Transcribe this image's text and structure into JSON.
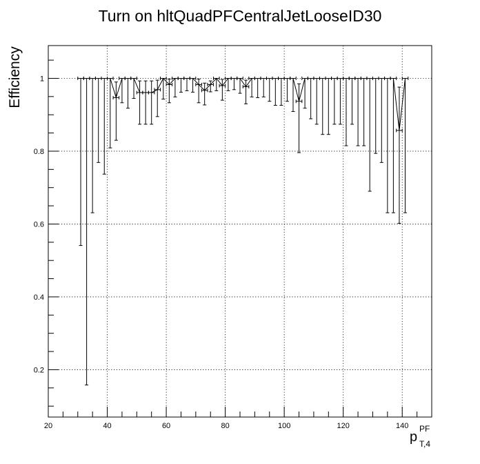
{
  "chart_data": {
    "type": "scatter",
    "title": "Turn on hltQuadPFCentralJetLooseID30",
    "ylabel": "Efficiency",
    "xlabel": {
      "base": "p",
      "superscript": "PF",
      "subscript": "T,4"
    },
    "xlim": [
      20,
      150
    ],
    "ylim": [
      0.07,
      1.09
    ],
    "xticks": [
      20,
      40,
      60,
      80,
      100,
      120,
      140
    ],
    "yticks": [
      0.2,
      0.4,
      0.6,
      0.8,
      1
    ],
    "grid": true,
    "bin_half_width": 1,
    "points": [
      {
        "x": 31,
        "y": 1,
        "lo": 0.541
      },
      {
        "x": 33,
        "y": 1,
        "lo": 0.158
      },
      {
        "x": 35,
        "y": 1,
        "lo": 0.631
      },
      {
        "x": 37,
        "y": 1,
        "lo": 0.769
      },
      {
        "x": 39,
        "y": 1,
        "lo": 0.737
      },
      {
        "x": 41,
        "y": 1,
        "lo": 0.809
      },
      {
        "x": 43,
        "y": 0.947,
        "lo": 0.83,
        "hi": 0.99
      },
      {
        "x": 45,
        "y": 1,
        "lo": 0.933
      },
      {
        "x": 47,
        "y": 1,
        "lo": 0.918
      },
      {
        "x": 49,
        "y": 1,
        "lo": 0.945
      },
      {
        "x": 51,
        "y": 0.961,
        "lo": 0.874,
        "hi": 0.993
      },
      {
        "x": 53,
        "y": 0.961,
        "lo": 0.874,
        "hi": 0.993
      },
      {
        "x": 55,
        "y": 0.961,
        "lo": 0.874,
        "hi": 0.993
      },
      {
        "x": 57,
        "y": 0.969,
        "lo": 0.895,
        "hi": 0.995
      },
      {
        "x": 59,
        "y": 1,
        "lo": 0.943
      },
      {
        "x": 61,
        "y": 0.983,
        "lo": 0.933,
        "hi": 0.998
      },
      {
        "x": 63,
        "y": 1,
        "lo": 0.949
      },
      {
        "x": 65,
        "y": 1,
        "lo": 0.962
      },
      {
        "x": 67,
        "y": 1,
        "lo": 0.966
      },
      {
        "x": 69,
        "y": 1,
        "lo": 0.962
      },
      {
        "x": 71,
        "y": 0.983,
        "lo": 0.933,
        "hi": 0.998
      },
      {
        "x": 73,
        "y": 0.967,
        "lo": 0.927,
        "hi": 0.987
      },
      {
        "x": 75,
        "y": 0.983,
        "lo": 0.963,
        "hi": 0.993
      },
      {
        "x": 77,
        "y": 1,
        "lo": 0.966
      },
      {
        "x": 79,
        "y": 0.98,
        "lo": 0.94,
        "hi": 0.997
      },
      {
        "x": 81,
        "y": 1,
        "lo": 0.966
      },
      {
        "x": 83,
        "y": 1,
        "lo": 0.969
      },
      {
        "x": 85,
        "y": 1,
        "lo": 0.959
      },
      {
        "x": 87,
        "y": 0.977,
        "lo": 0.93,
        "hi": 0.995
      },
      {
        "x": 89,
        "y": 1,
        "lo": 0.949
      },
      {
        "x": 91,
        "y": 1,
        "lo": 0.947
      },
      {
        "x": 93,
        "y": 1,
        "lo": 0.949
      },
      {
        "x": 95,
        "y": 1,
        "lo": 0.937
      },
      {
        "x": 97,
        "y": 1,
        "lo": 0.926
      },
      {
        "x": 99,
        "y": 1,
        "lo": 0.926
      },
      {
        "x": 101,
        "y": 1,
        "lo": 0.937
      },
      {
        "x": 103,
        "y": 1,
        "lo": 0.909
      },
      {
        "x": 105,
        "y": 0.937,
        "lo": 0.796,
        "hi": 0.985
      },
      {
        "x": 107,
        "y": 1,
        "lo": 0.918
      },
      {
        "x": 109,
        "y": 1,
        "lo": 0.889
      },
      {
        "x": 111,
        "y": 1,
        "lo": 0.874
      },
      {
        "x": 113,
        "y": 1,
        "lo": 0.846
      },
      {
        "x": 115,
        "y": 1,
        "lo": 0.846
      },
      {
        "x": 117,
        "y": 1,
        "lo": 0.874
      },
      {
        "x": 119,
        "y": 1,
        "lo": 0.874
      },
      {
        "x": 121,
        "y": 1,
        "lo": 0.815
      },
      {
        "x": 123,
        "y": 1,
        "lo": 0.874
      },
      {
        "x": 125,
        "y": 1,
        "lo": 0.815
      },
      {
        "x": 127,
        "y": 1,
        "lo": 0.815
      },
      {
        "x": 129,
        "y": 1,
        "lo": 0.69
      },
      {
        "x": 131,
        "y": 1,
        "lo": 0.794
      },
      {
        "x": 133,
        "y": 1,
        "lo": 0.769
      },
      {
        "x": 135,
        "y": 1,
        "lo": 0.631
      },
      {
        "x": 137,
        "y": 1,
        "lo": 0.631
      },
      {
        "x": 139,
        "y": 0.857,
        "lo": 0.602,
        "hi": 0.976
      },
      {
        "x": 141,
        "y": 1,
        "lo": 0.631
      }
    ]
  }
}
